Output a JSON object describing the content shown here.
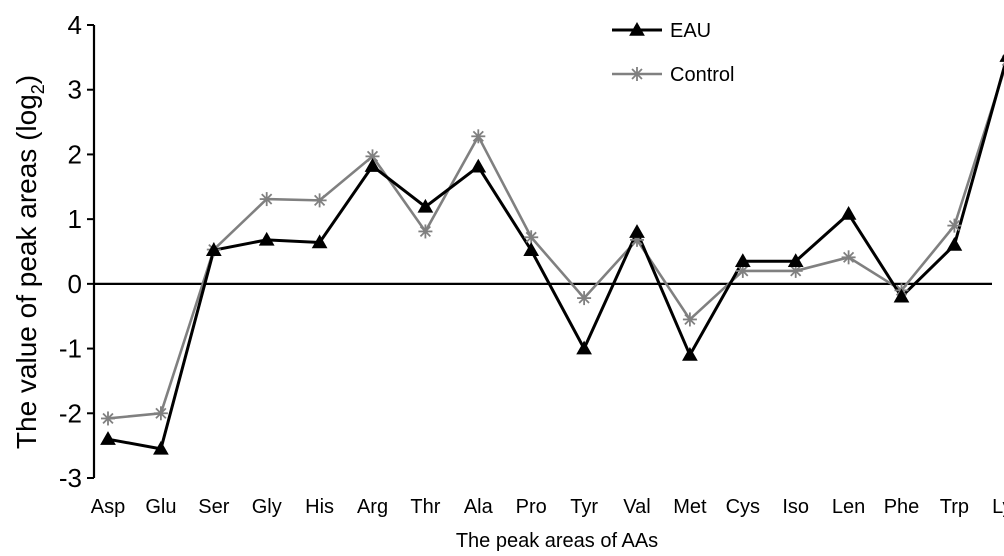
{
  "chart_data": {
    "type": "line",
    "title": "",
    "xlabel": "The peak areas of AAs",
    "ylabel": {
      "prefix": "The value of peak areas (log",
      "sub": "2",
      "suffix": ")"
    },
    "ylim": [
      -3,
      4
    ],
    "yticks": [
      "4",
      "3",
      "2",
      "1",
      "0",
      "-1",
      "-2",
      "-3"
    ],
    "ytick_values": [
      4,
      3,
      2,
      1,
      0,
      -1,
      -2,
      -3
    ],
    "categories": [
      "Asp",
      "Glu",
      "Ser",
      "Gly",
      "His",
      "Arg",
      "Thr",
      "Ala",
      "Pro",
      "Tyr",
      "Val",
      "Met",
      "Cys",
      "Iso",
      "Len",
      "Phe",
      "Trp",
      "Lys"
    ],
    "legend_position": "top-center",
    "grid": false,
    "series": [
      {
        "name": "EAU",
        "marker": "triangle",
        "color": "#000000",
        "values": [
          -2.4,
          -2.55,
          0.52,
          0.68,
          0.64,
          1.82,
          1.19,
          1.81,
          0.52,
          -1.0,
          0.8,
          -1.1,
          0.35,
          0.35,
          1.08,
          -0.2,
          0.6,
          3.52
        ]
      },
      {
        "name": "Control",
        "marker": "asterisk",
        "color": "#808080",
        "values": [
          -2.08,
          -2.0,
          0.53,
          1.31,
          1.29,
          1.97,
          0.81,
          2.28,
          0.72,
          -0.22,
          0.68,
          -0.55,
          0.2,
          0.2,
          0.41,
          -0.1,
          0.9,
          3.45
        ]
      }
    ]
  }
}
